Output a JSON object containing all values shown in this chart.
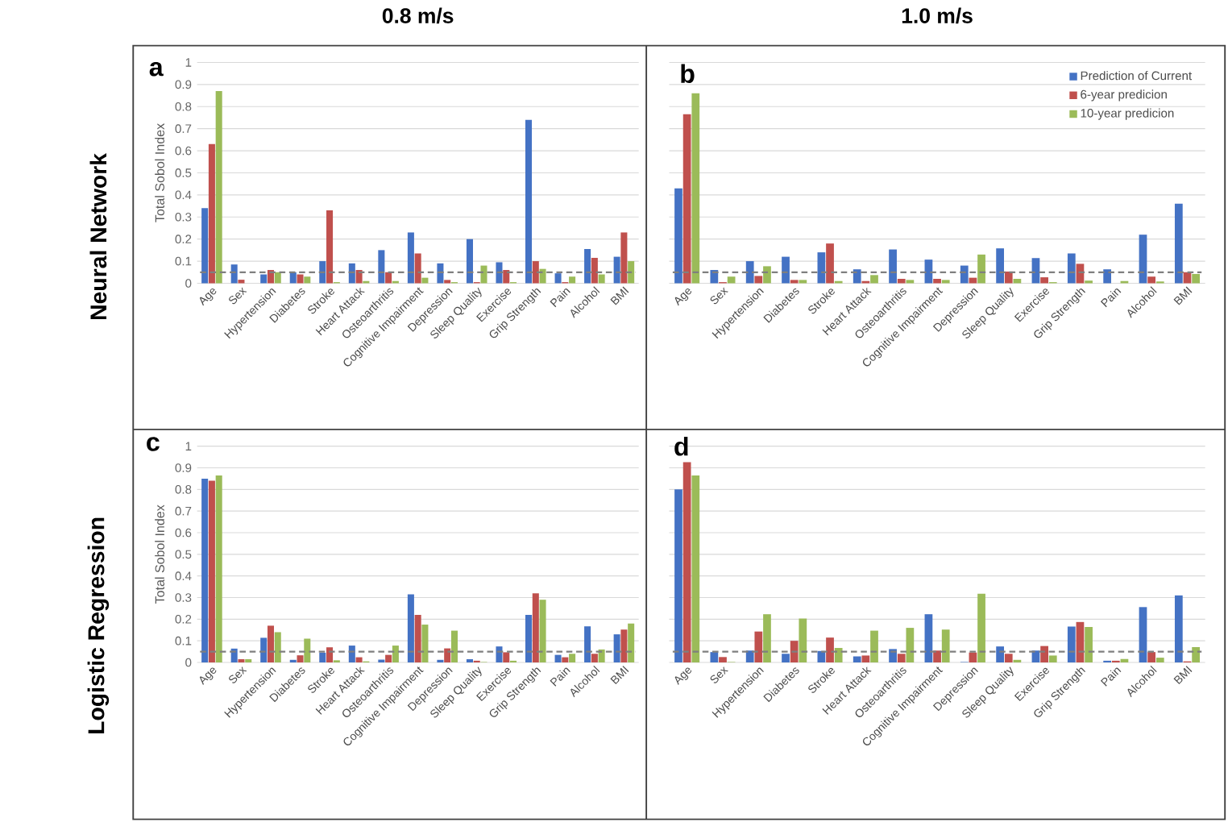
{
  "chart_data": [
    {
      "type": "bar",
      "title": "0.8 m/s",
      "ylabel": "Total Sobol Index",
      "annotations": [
        "a",
        "Neural Network"
      ],
      "categories": [
        "Age",
        "Sex",
        "Hypertension",
        "Diabetes",
        "Stroke",
        "Heart Attack",
        "Osteoarthritis",
        "Cognitive Impairment",
        "Depression",
        "Sleep Quality",
        "Exercise",
        "Grip Strength",
        "Pain",
        "Alcohol",
        "BMI"
      ],
      "series": [
        {
          "color": "#4472c4",
          "values": [
            0.34,
            0.085,
            0.04,
            0.05,
            0.1,
            0.09,
            0.15,
            0.23,
            0.09,
            0.2,
            0.095,
            0.74,
            0.045,
            0.155,
            0.12
          ]
        },
        {
          "color": "#c0504d",
          "values": [
            0.63,
            0.016,
            0.06,
            0.04,
            0.33,
            0.06,
            0.05,
            0.135,
            0.015,
            0.005,
            0.06,
            0.1,
            0.005,
            0.115,
            0.23
          ]
        },
        {
          "color": "#9bbb59",
          "values": [
            0.87,
            null,
            0.05,
            0.03,
            0.005,
            0.01,
            0.01,
            0.025,
            0.005,
            0.08,
            0.005,
            0.065,
            0.03,
            0.04,
            0.1
          ]
        }
      ],
      "ylim": [
        0,
        1
      ],
      "yticks": [
        0,
        0.1,
        0.2,
        0.3,
        0.4,
        0.5,
        0.6,
        0.7,
        0.8,
        0.9,
        1
      ],
      "grid": "y",
      "ref_lines": [
        {
          "axis": "y",
          "value": 0.05,
          "color": "#7f7f7f",
          "line_style": "dashed"
        }
      ]
    },
    {
      "type": "bar",
      "title": "1.0 m/s",
      "annotations": [
        "b"
      ],
      "categories": [
        "Age",
        "Sex",
        "Hypertension",
        "Diabetes",
        "Stroke",
        "Heart Attack",
        "Osteoarthritis",
        "Cognitive Impairment",
        "Depression",
        "Sleep Quality",
        "Exercise",
        "Grip Strength",
        "Pain",
        "Alcohol",
        "BMI"
      ],
      "series": [
        {
          "name": "Prediction of Current",
          "color": "#4472c4",
          "values": [
            0.43,
            0.06,
            0.1,
            0.12,
            0.14,
            0.063,
            0.153,
            0.107,
            0.08,
            0.158,
            0.114,
            0.135,
            0.063,
            0.22,
            0.36
          ]
        },
        {
          "name": "6-year predicion",
          "color": "#c0504d",
          "values": [
            0.765,
            0.005,
            0.033,
            0.015,
            0.18,
            0.01,
            0.02,
            0.02,
            0.025,
            0.053,
            0.027,
            0.088,
            null,
            0.03,
            0.05
          ]
        },
        {
          "name": "10-year predicion",
          "color": "#9bbb59",
          "values": [
            0.86,
            0.03,
            0.077,
            0.015,
            0.01,
            0.037,
            0.015,
            0.015,
            0.13,
            0.02,
            0.005,
            0.012,
            0.01,
            0.008,
            0.042
          ]
        }
      ],
      "ylim": [
        0,
        1
      ],
      "yticks": [
        0,
        0.1,
        0.2,
        0.3,
        0.4,
        0.5,
        0.6,
        0.7,
        0.8,
        0.9,
        1
      ],
      "grid": "y",
      "tick_labels": "x",
      "legend": "top right",
      "ref_lines": [
        {
          "axis": "y",
          "value": 0.05,
          "color": "#7f7f7f",
          "line_style": "dashed"
        }
      ]
    },
    {
      "type": "bar",
      "ylabel": "Total Sobol Index",
      "annotations": [
        "c",
        "Logistic Regression"
      ],
      "categories": [
        "Age",
        "Sex",
        "Hypertension",
        "Diabetes",
        "Stroke",
        "Heart Attack",
        "Osteoarthritis",
        "Cognitive Impairment",
        "Depression",
        "Sleep Quality",
        "Exercise",
        "Grip Strength",
        "Pain",
        "Alcohol",
        "BMI"
      ],
      "series": [
        {
          "color": "#4472c4",
          "values": [
            0.85,
            0.064,
            0.114,
            0.012,
            0.045,
            0.078,
            0.013,
            0.315,
            0.012,
            0.015,
            0.074,
            0.22,
            0.035,
            0.167,
            0.13
          ]
        },
        {
          "color": "#c0504d",
          "values": [
            0.84,
            0.015,
            0.17,
            0.033,
            0.07,
            0.024,
            0.035,
            0.22,
            0.065,
            0.008,
            0.047,
            0.32,
            0.024,
            0.04,
            0.152
          ]
        },
        {
          "color": "#9bbb59",
          "values": [
            0.865,
            0.015,
            0.14,
            0.11,
            0.01,
            0.005,
            0.078,
            0.175,
            0.147,
            0.002,
            0.008,
            0.29,
            0.04,
            0.06,
            0.18
          ]
        }
      ],
      "ylim": [
        0,
        1
      ],
      "yticks": [
        0,
        0.1,
        0.2,
        0.3,
        0.4,
        0.5,
        0.6,
        0.7,
        0.8,
        0.9,
        1
      ],
      "grid": "y",
      "ref_lines": [
        {
          "axis": "y",
          "value": 0.05,
          "color": "#7f7f7f",
          "line_style": "dashed"
        }
      ]
    },
    {
      "type": "bar",
      "annotations": [
        "d"
      ],
      "categories": [
        "Age",
        "Sex",
        "Hypertension",
        "Diabetes",
        "Stroke",
        "Heart Attack",
        "Osteoarthritis",
        "Cognitive Impairment",
        "Depression",
        "Sleep Quality",
        "Exercise",
        "Grip Strength",
        "Pain",
        "Alcohol",
        "BMI"
      ],
      "series": [
        {
          "color": "#4472c4",
          "values": [
            0.8,
            0.048,
            0.055,
            0.04,
            0.053,
            0.028,
            0.062,
            0.223,
            0.002,
            0.074,
            0.055,
            0.166,
            0.008,
            0.256,
            0.31
          ]
        },
        {
          "color": "#c0504d",
          "values": [
            0.926,
            0.025,
            0.143,
            0.1,
            0.115,
            0.032,
            0.04,
            0.055,
            0.046,
            0.04,
            0.076,
            0.187,
            0.008,
            0.048,
            0.005
          ]
        },
        {
          "color": "#9bbb59",
          "values": [
            0.865,
            0.002,
            0.223,
            0.203,
            0.067,
            0.147,
            0.16,
            0.152,
            0.318,
            0.012,
            0.032,
            0.164,
            0.016,
            0.022,
            0.071
          ]
        }
      ],
      "ylim": [
        0,
        1
      ],
      "yticks": [
        0,
        0.1,
        0.2,
        0.3,
        0.4,
        0.5,
        0.6,
        0.7,
        0.8,
        0.9,
        1
      ],
      "grid": "y",
      "tick_labels": "x",
      "ref_lines": [
        {
          "axis": "y",
          "value": 0.05,
          "color": "#7f7f7f",
          "line_style": "dashed"
        }
      ]
    }
  ]
}
